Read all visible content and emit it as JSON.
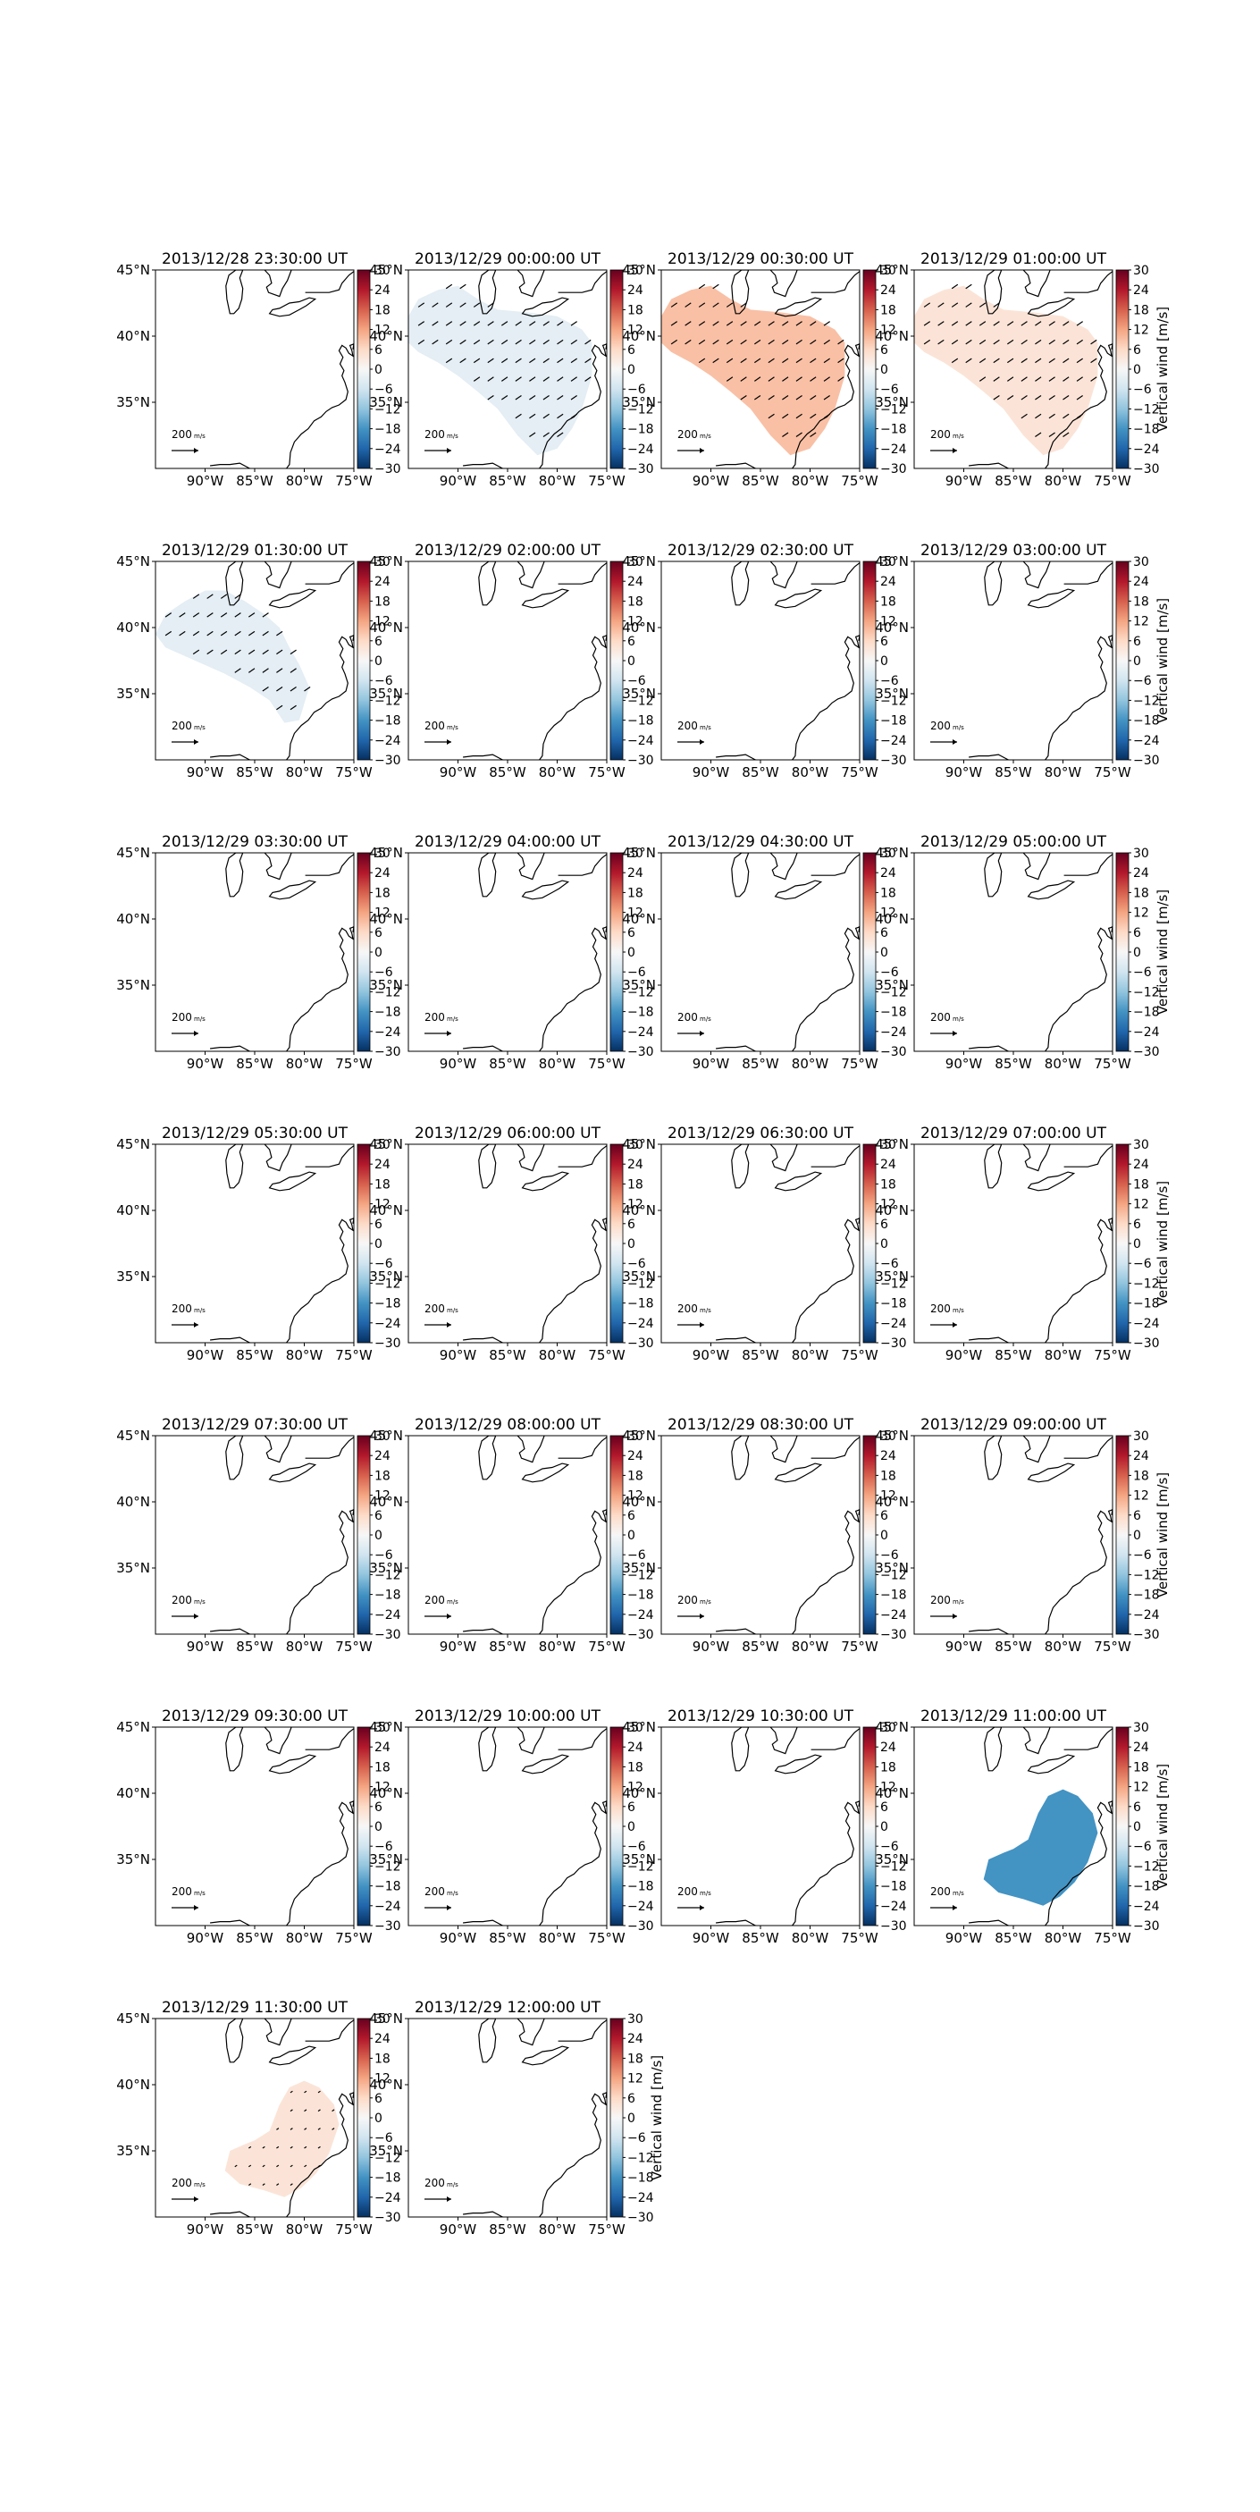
{
  "figure": {
    "colorbar_label": "Vertical wind [m/s]",
    "colorbar_ticks": [
      "30",
      "24",
      "18",
      "12",
      "6",
      "0",
      "−6",
      "−12",
      "−18",
      "−24",
      "−30"
    ],
    "colorbar_range": [
      -30,
      30
    ],
    "lon_ticks": [
      "90°W",
      "85°W",
      "80°W",
      "75°W"
    ],
    "lat_ticks": [
      "45°N",
      "40°N",
      "35°N"
    ],
    "quiver_key_label": "200",
    "quiver_key_unit": "m/s",
    "colors": {
      "negative_small": "#d8e6f0",
      "positive_medium": "#f5b89a",
      "positive_small": "#fbe3d4",
      "negative_medium": "#4b97c9",
      "coast": "#000000"
    }
  },
  "chart_data": {
    "type": "heatmap",
    "description_units": "vertical wind in m/s; shaded region is where nonzero values exist",
    "lon_range": [
      -95,
      -75
    ],
    "lat_range": [
      30,
      45
    ],
    "panels": [
      {
        "title": "2013/12/28 23:30:00 UT",
        "value": 0,
        "region": "none",
        "arrows": false
      },
      {
        "title": "2013/12/29 00:00:00 UT",
        "value": -3,
        "region": "north",
        "arrows": true
      },
      {
        "title": "2013/12/29 00:30:00 UT",
        "value": 9,
        "region": "north",
        "arrows": true
      },
      {
        "title": "2013/12/29 01:00:00 UT",
        "value": 4,
        "region": "north",
        "arrows": true
      },
      {
        "title": "2013/12/29 01:30:00 UT",
        "value": -3,
        "region": "northwest",
        "arrows": true
      },
      {
        "title": "2013/12/29 02:00:00 UT",
        "value": 0,
        "region": "none",
        "arrows": false
      },
      {
        "title": "2013/12/29 02:30:00 UT",
        "value": 0,
        "region": "none",
        "arrows": false
      },
      {
        "title": "2013/12/29 03:00:00 UT",
        "value": 0,
        "region": "none",
        "arrows": false
      },
      {
        "title": "2013/12/29 03:30:00 UT",
        "value": 0,
        "region": "none",
        "arrows": false
      },
      {
        "title": "2013/12/29 04:00:00 UT",
        "value": 0,
        "region": "none",
        "arrows": false
      },
      {
        "title": "2013/12/29 04:30:00 UT",
        "value": 0,
        "region": "none",
        "arrows": false
      },
      {
        "title": "2013/12/29 05:00:00 UT",
        "value": 0,
        "region": "none",
        "arrows": false
      },
      {
        "title": "2013/12/29 05:30:00 UT",
        "value": 0,
        "region": "none",
        "arrows": false
      },
      {
        "title": "2013/12/29 06:00:00 UT",
        "value": 0,
        "region": "none",
        "arrows": false
      },
      {
        "title": "2013/12/29 06:30:00 UT",
        "value": 0,
        "region": "none",
        "arrows": false
      },
      {
        "title": "2013/12/29 07:00:00 UT",
        "value": 0,
        "region": "none",
        "arrows": false
      },
      {
        "title": "2013/12/29 07:30:00 UT",
        "value": 0,
        "region": "none",
        "arrows": false
      },
      {
        "title": "2013/12/29 08:00:00 UT",
        "value": 0,
        "region": "none",
        "arrows": false
      },
      {
        "title": "2013/12/29 08:30:00 UT",
        "value": 0,
        "region": "none",
        "arrows": false
      },
      {
        "title": "2013/12/29 09:00:00 UT",
        "value": 0,
        "region": "none",
        "arrows": false
      },
      {
        "title": "2013/12/29 09:30:00 UT",
        "value": 0,
        "region": "none",
        "arrows": false
      },
      {
        "title": "2013/12/29 10:00:00 UT",
        "value": 0,
        "region": "none",
        "arrows": false
      },
      {
        "title": "2013/12/29 10:30:00 UT",
        "value": 0,
        "region": "none",
        "arrows": false
      },
      {
        "title": "2013/12/29 11:00:00 UT",
        "value": -18,
        "region": "south",
        "arrows": false
      },
      {
        "title": "2013/12/29 11:30:00 UT",
        "value": 4,
        "region": "south",
        "arrows": true
      },
      {
        "title": "2013/12/29 12:00:00 UT",
        "value": 0,
        "region": "none",
        "arrows": false
      }
    ]
  }
}
